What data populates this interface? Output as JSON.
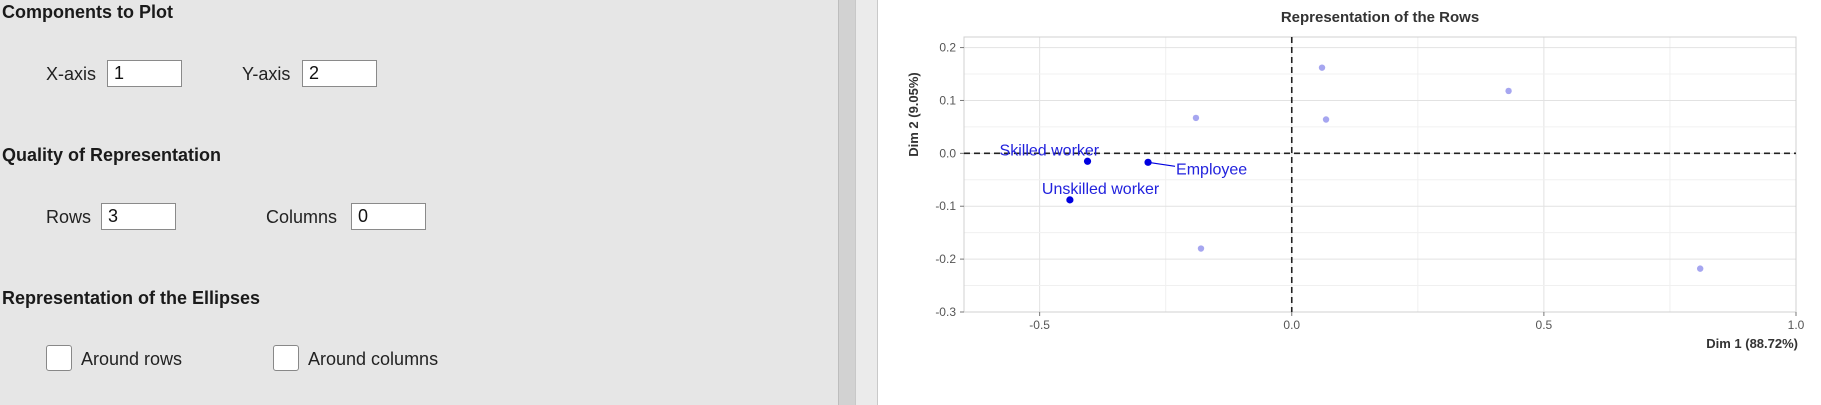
{
  "components": {
    "title": "Components to Plot",
    "xaxis_label": "X-axis",
    "xaxis_value": "1",
    "yaxis_label": "Y-axis",
    "yaxis_value": "2"
  },
  "quality": {
    "title": "Quality of Representation",
    "rows_label": "Rows",
    "rows_value": "3",
    "columns_label": "Columns",
    "columns_value": "0"
  },
  "ellipses": {
    "title": "Representation of the Ellipses",
    "around_rows_label": "Around rows",
    "around_columns_label": "Around columns"
  },
  "colors": {
    "highlight_point": "#0000e0",
    "faded_point": "#a6a6f0",
    "label": "#2222dd"
  },
  "chart_data": {
    "type": "scatter",
    "title": "Representation of the Rows",
    "xlabel": "Dim 1 (88.72%)",
    "ylabel": "Dim 2 (9.05%)",
    "xlim": [
      -0.65,
      1.0
    ],
    "ylim": [
      -0.3,
      0.22
    ],
    "x_ticks": [
      -0.5,
      0.0,
      0.5,
      1.0
    ],
    "x_tick_labels": [
      "-0.5",
      "0.0",
      "0.5",
      "1.0"
    ],
    "y_ticks": [
      0.2,
      0.1,
      0.0,
      -0.1,
      -0.2,
      -0.3
    ],
    "y_tick_labels": [
      "0.2",
      "0.1",
      "0.0",
      "-0.1",
      "-0.2",
      "-0.3"
    ],
    "grid": true,
    "reference_lines": {
      "x": 0,
      "y": 0,
      "style": "dashed"
    },
    "points": [
      {
        "x": -0.405,
        "y": -0.015,
        "label": "Skilled worker",
        "highlighted": true
      },
      {
        "x": -0.285,
        "y": -0.017,
        "label": "Employee",
        "highlighted": true
      },
      {
        "x": -0.44,
        "y": -0.088,
        "label": "Unskilled worker",
        "highlighted": true
      },
      {
        "x": -0.19,
        "y": 0.067,
        "label": "",
        "highlighted": false
      },
      {
        "x": -0.18,
        "y": -0.18,
        "label": "",
        "highlighted": false
      },
      {
        "x": 0.06,
        "y": 0.162,
        "label": "",
        "highlighted": false
      },
      {
        "x": 0.068,
        "y": 0.064,
        "label": "",
        "highlighted": false
      },
      {
        "x": 0.43,
        "y": 0.118,
        "label": "",
        "highlighted": false
      },
      {
        "x": 0.81,
        "y": -0.218,
        "label": "",
        "highlighted": false
      }
    ]
  }
}
